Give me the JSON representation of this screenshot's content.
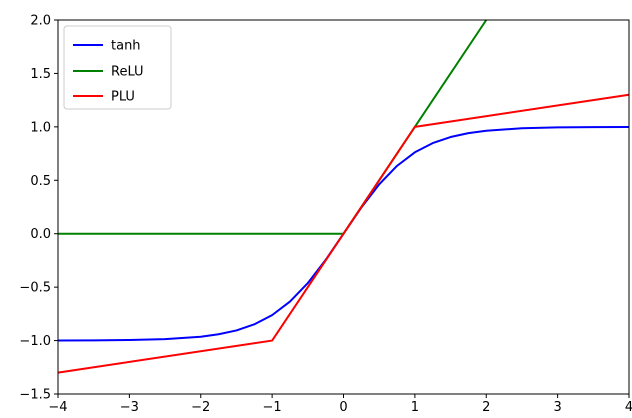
{
  "chart_data": {
    "type": "line",
    "title": "",
    "xlabel": "",
    "ylabel": "",
    "xlim": [
      -4,
      4
    ],
    "ylim": [
      -1.5,
      2.0
    ],
    "x_ticks": [
      -4,
      -3,
      -2,
      -1,
      0,
      1,
      2,
      3,
      4
    ],
    "x_tick_labels": [
      "−4",
      "−3",
      "−2",
      "−1",
      "0",
      "1",
      "2",
      "3",
      "4"
    ],
    "y_ticks": [
      -1.5,
      -1.0,
      -0.5,
      0.0,
      0.5,
      1.0,
      1.5,
      2.0
    ],
    "y_tick_labels": [
      "−1.5",
      "−1.0",
      "−0.5",
      "0.0",
      "0.5",
      "1.0",
      "1.5",
      "2.0"
    ],
    "grid": false,
    "legend": "top-left",
    "series": [
      {
        "name": "tanh",
        "color": "#0000ff",
        "x": [
          -4.0,
          -3.5,
          -3.0,
          -2.5,
          -2.0,
          -1.75,
          -1.5,
          -1.25,
          -1.0,
          -0.75,
          -0.5,
          -0.25,
          0.0,
          0.25,
          0.5,
          0.75,
          1.0,
          1.25,
          1.5,
          1.75,
          2.0,
          2.5,
          3.0,
          3.5,
          4.0
        ],
        "y": [
          -0.999,
          -0.998,
          -0.995,
          -0.987,
          -0.964,
          -0.941,
          -0.905,
          -0.848,
          -0.762,
          -0.635,
          -0.462,
          -0.245,
          0.0,
          0.245,
          0.462,
          0.635,
          0.762,
          0.848,
          0.905,
          0.941,
          0.964,
          0.987,
          0.995,
          0.998,
          0.999
        ]
      },
      {
        "name": "ReLU",
        "color": "#008000",
        "x": [
          -4.0,
          0.0,
          2.0
        ],
        "y": [
          0.0,
          0.0,
          2.0
        ]
      },
      {
        "name": "PLU",
        "color": "#ff0000",
        "x": [
          -4.0,
          -1.0,
          1.0,
          4.0
        ],
        "y": [
          -1.3,
          -1.0,
          1.0,
          1.3
        ]
      }
    ]
  }
}
